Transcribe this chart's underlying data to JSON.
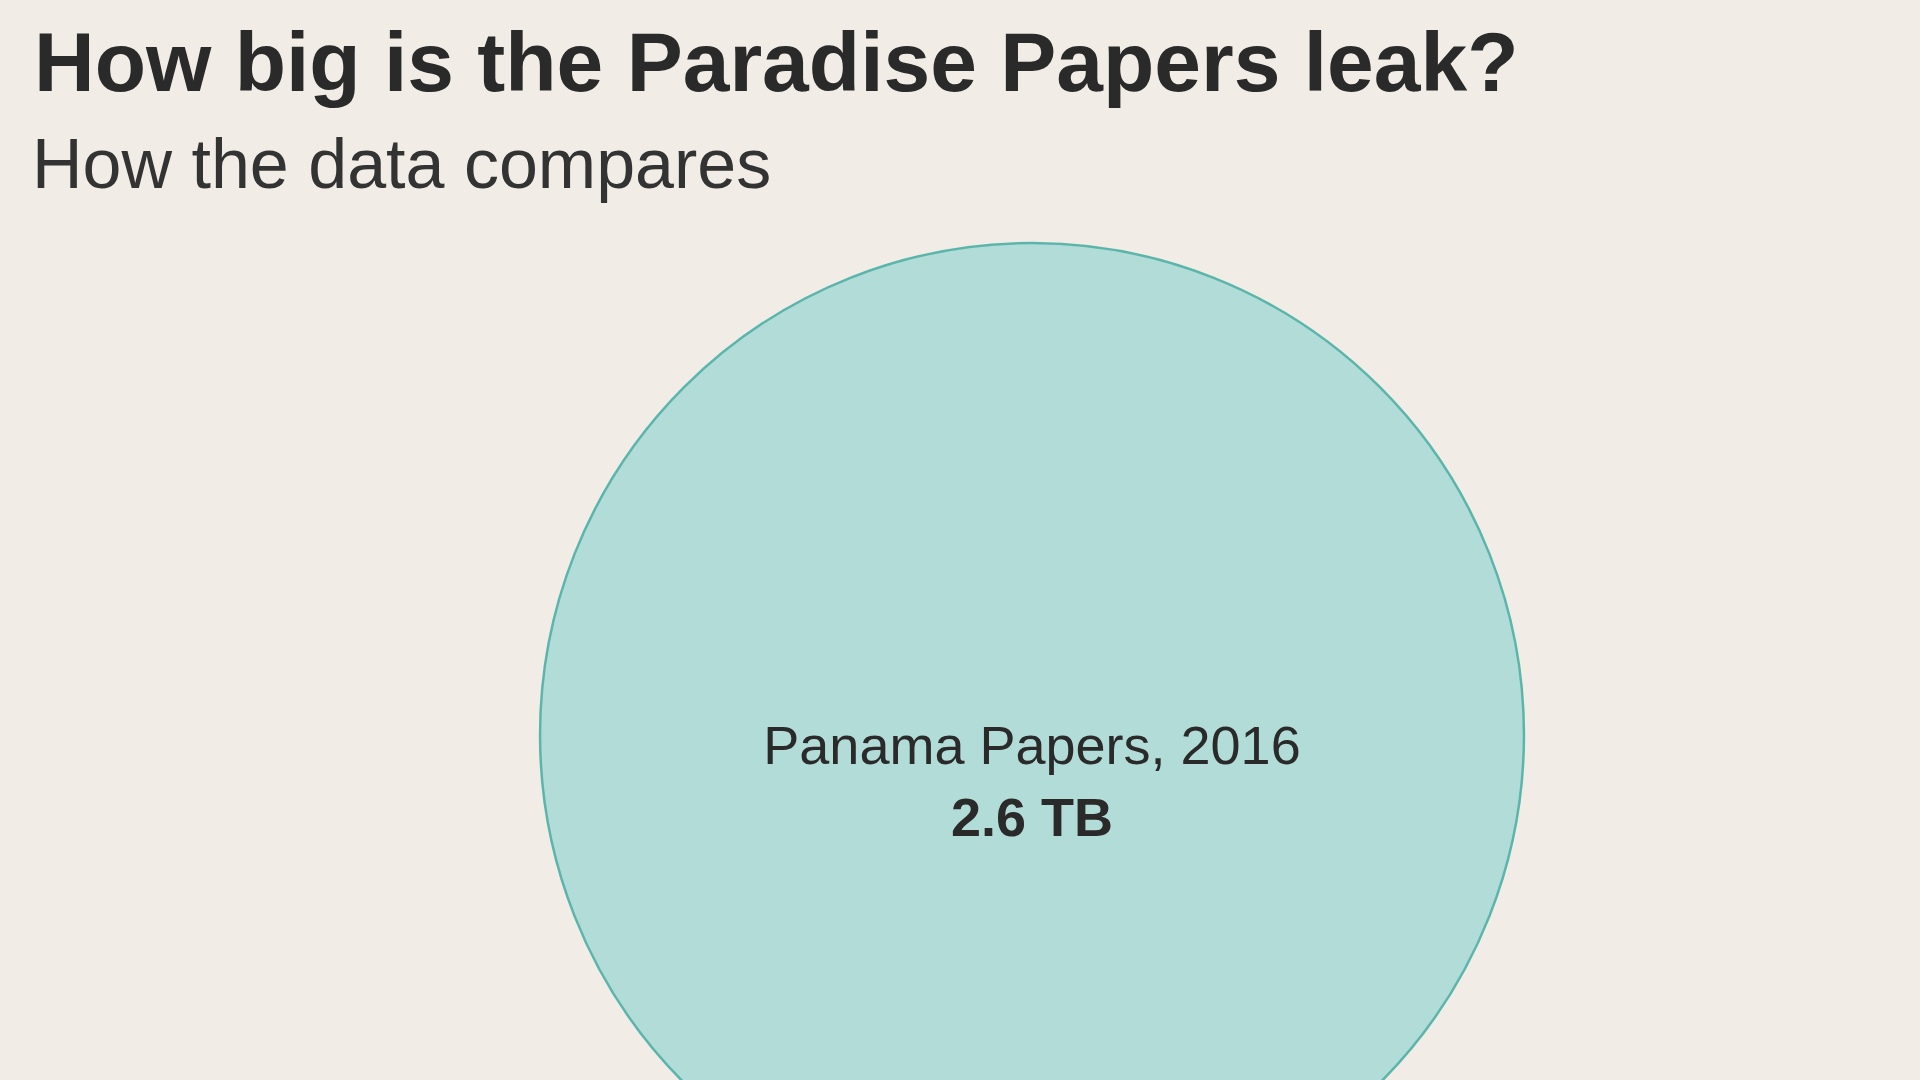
{
  "chart_data": {
    "type": "other",
    "title": "How big is the Paradise Papers leak?",
    "subtitle": "How the data compares",
    "categories": [
      "Panama Papers, 2016"
    ],
    "values": [
      2.6
    ],
    "value_labels": [
      "2.6 TB"
    ],
    "colors": [
      "#b2dcd8"
    ]
  }
}
